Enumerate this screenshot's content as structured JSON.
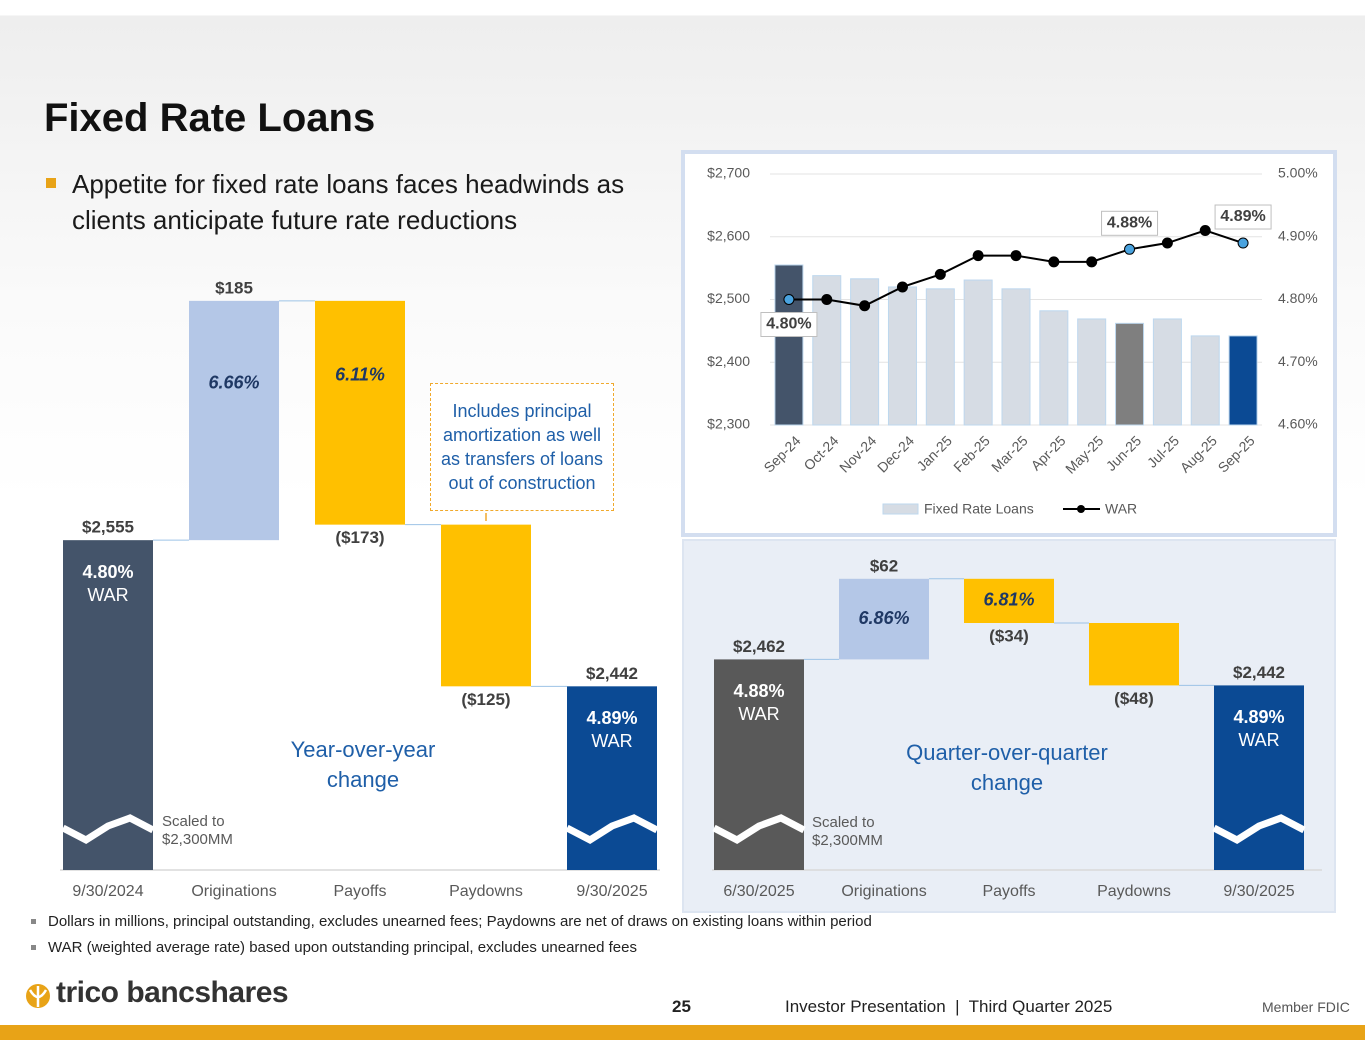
{
  "header": {
    "title": "Fixed Rate Loans",
    "bullet": "Appetite for fixed rate loans faces headwinds as clients anticipate future rate reductions"
  },
  "chart_data": [
    {
      "type": "waterfall",
      "categories": [
        "9/30/2024",
        "Originations",
        "Payoffs",
        "Paydowns",
        "9/30/2025"
      ],
      "values": [
        2555,
        185,
        -173,
        -125,
        2442
      ],
      "value_labels": [
        "$2,555",
        "$185",
        "($173)",
        "($125)",
        "$2,442"
      ],
      "rates": [
        4.8,
        6.66,
        6.11,
        null,
        4.89
      ],
      "rate_labels": [
        "4.80%",
        "6.66%",
        "6.11%",
        null,
        "4.89%"
      ],
      "rate_caption": "WAR",
      "colors": [
        "#44546a",
        "#b4c7e7",
        "#ffc000",
        "#ffc000",
        "#0b4a94"
      ],
      "ylim": [
        2300,
        2760
      ],
      "annotations": [
        "Includes principal amortization as well as transfers of loans out of construction",
        "Year-over-year change",
        "Scaled to $2,300MM"
      ]
    },
    {
      "type": "waterfall",
      "categories": [
        "6/30/2025",
        "Originations",
        "Payoffs",
        "Paydowns",
        "9/30/2025"
      ],
      "values": [
        2462,
        62,
        -34,
        -48,
        2442
      ],
      "value_labels": [
        "$2,462",
        "$62",
        "($34)",
        "($48)",
        "$2,442"
      ],
      "rates": [
        4.88,
        6.86,
        6.81,
        null,
        4.89
      ],
      "rate_labels": [
        "4.88%",
        "6.86%",
        "6.81%",
        null,
        "4.89%"
      ],
      "rate_caption": "WAR",
      "colors": [
        "#595959",
        "#b4c7e7",
        "#ffc000",
        "#ffc000",
        "#0b4a94"
      ],
      "ylim": [
        2300,
        2560
      ],
      "annotations": [
        "Quarter-over-quarter change",
        "Scaled to $2,300MM"
      ]
    },
    {
      "type": "combo",
      "categories": [
        "Sep-24",
        "Oct-24",
        "Nov-24",
        "Dec-24",
        "Jan-25",
        "Feb-25",
        "Mar-25",
        "Apr-25",
        "May-25",
        "Jun-25",
        "Jul-25",
        "Aug-25",
        "Sep-25"
      ],
      "series": [
        {
          "name": "Fixed Rate Loans",
          "type": "bar",
          "color": "#d6dce4",
          "colors": [
            "#44546a",
            "#d6dce4",
            "#d6dce4",
            "#d6dce4",
            "#d6dce4",
            "#d6dce4",
            "#d6dce4",
            "#d6dce4",
            "#d6dce4",
            "#7f7f7f",
            "#d6dce4",
            "#d6dce4",
            "#0b4a94"
          ],
          "values": [
            2555,
            2538,
            2533,
            2520,
            2517,
            2531,
            2517,
            2482,
            2469,
            2462,
            2469,
            2442,
            2442
          ]
        },
        {
          "name": "WAR",
          "type": "line",
          "axis": "y2",
          "color": "#000000",
          "highlight_color": "#4aa3df",
          "values": [
            4.8,
            4.8,
            4.79,
            4.82,
            4.84,
            4.87,
            4.87,
            4.86,
            4.86,
            4.88,
            4.89,
            4.91,
            4.89
          ],
          "value_labels": [
            "4.80%",
            null,
            null,
            null,
            null,
            null,
            null,
            null,
            null,
            "4.88%",
            null,
            null,
            "4.89%"
          ]
        }
      ],
      "ylim": [
        2300,
        2700
      ],
      "yticks": [
        {
          "value": 2300,
          "label": "$2,300"
        },
        {
          "value": 2400,
          "label": "$2,400"
        },
        {
          "value": 2500,
          "label": "$2,500"
        },
        {
          "value": 2600,
          "label": "$2,600"
        },
        {
          "value": 2700,
          "label": "$2,700"
        }
      ],
      "y2lim": [
        4.6,
        5.0
      ],
      "y2ticks": [
        {
          "value": 4.6,
          "label": "4.60%"
        },
        {
          "value": 4.7,
          "label": "4.70%"
        },
        {
          "value": 4.8,
          "label": "4.80%"
        },
        {
          "value": 4.9,
          "label": "4.90%"
        },
        {
          "value": 5.0,
          "label": "5.00%"
        }
      ],
      "grid": true,
      "legend": "bottom"
    }
  ],
  "footnotes": [
    "Dollars in millions, principal outstanding, excludes unearned fees; Paydowns are net of draws on existing loans within period",
    "WAR (weighted average rate) based upon outstanding principal, excludes unearned fees"
  ],
  "footer": {
    "logo": "trico bancshares",
    "page": "25",
    "text": "Investor Presentation  |  Third Quarter 2025",
    "member": "Member FDIC"
  }
}
